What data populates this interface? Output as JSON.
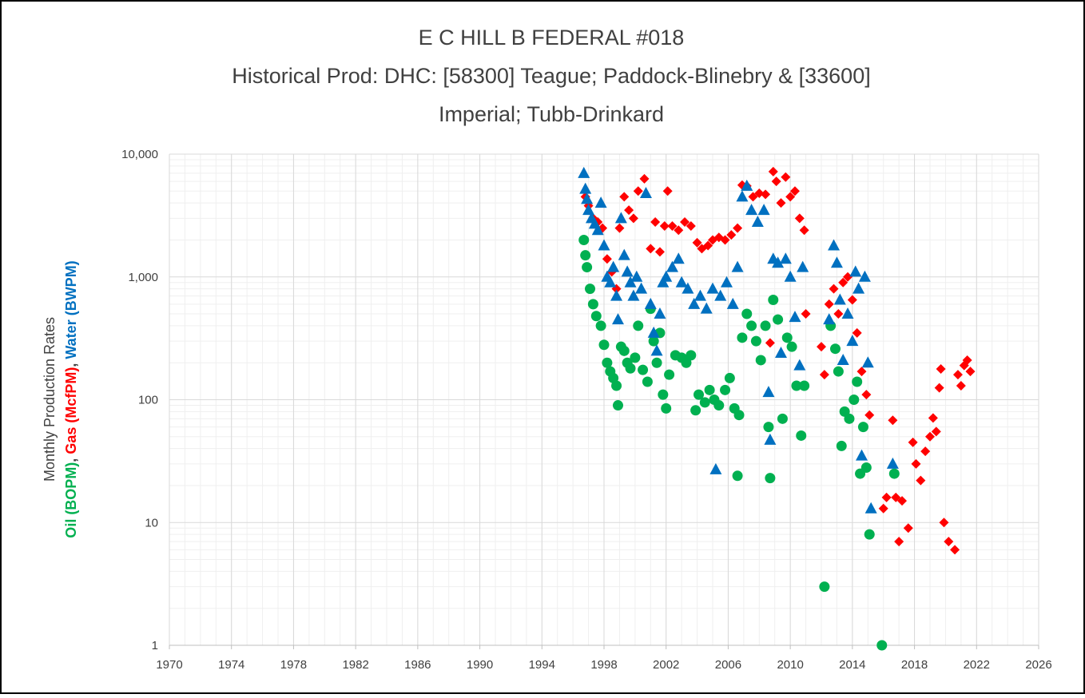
{
  "chart_data": {
    "type": "scatter",
    "title": [
      "E C HILL B FEDERAL #018",
      "Historical Prod: DHC: [58300] Teague; Paddock-Blinebry & [33600]",
      "Imperial; Tubb-Drinkard"
    ],
    "y_label": "Monthly Production Rates",
    "y_label_separator": ", ",
    "log_y": true,
    "grid": true,
    "minor_grid": true,
    "xlim": [
      1970,
      2026
    ],
    "xticks": [
      1970,
      1974,
      1978,
      1982,
      1986,
      1990,
      1994,
      1998,
      2002,
      2006,
      2010,
      2014,
      2018,
      2022,
      2026
    ],
    "ylim": [
      1,
      10000
    ],
    "yticks": [
      1,
      10,
      100,
      {
        "value": 1000,
        "label": "1,000"
      },
      {
        "value": 10000,
        "label": "10,000"
      }
    ],
    "series": [
      {
        "name": "Oil (BOPM)",
        "color": "#00b050",
        "marker": "circle",
        "x": [
          1996.7,
          1996.8,
          1996.9,
          1997.1,
          1997.3,
          1997.5,
          1997.8,
          1998.0,
          1998.2,
          1998.4,
          1998.6,
          1998.8,
          1998.9,
          1999.1,
          1999.3,
          1999.5,
          1999.7,
          2000.0,
          2000.2,
          2000.5,
          2000.8,
          2001.0,
          2001.2,
          2001.4,
          2001.6,
          2001.8,
          2002.0,
          2002.2,
          2002.6,
          2003.0,
          2003.3,
          2003.6,
          2003.9,
          2004.1,
          2004.5,
          2004.8,
          2005.1,
          2005.4,
          2005.8,
          2006.1,
          2006.4,
          2006.6,
          2006.7,
          2006.9,
          2007.2,
          2007.5,
          2007.8,
          2008.1,
          2008.4,
          2008.6,
          2008.7,
          2008.9,
          2009.2,
          2009.5,
          2009.8,
          2010.1,
          2010.4,
          2010.7,
          2010.9,
          2012.2,
          2012.6,
          2012.9,
          2013.1,
          2013.3,
          2013.5,
          2013.8,
          2014.1,
          2014.3,
          2014.5,
          2014.7,
          2014.9,
          2015.1,
          2015.9,
          2016.7
        ],
        "values": [
          2000,
          1500,
          1200,
          800,
          600,
          480,
          400,
          280,
          200,
          170,
          150,
          130,
          90,
          270,
          250,
          200,
          180,
          220,
          400,
          175,
          140,
          550,
          300,
          200,
          350,
          110,
          85,
          160,
          230,
          220,
          200,
          230,
          82,
          110,
          95,
          120,
          100,
          90,
          120,
          150,
          85,
          24,
          75,
          320,
          500,
          400,
          300,
          210,
          400,
          60,
          23,
          650,
          450,
          70,
          320,
          270,
          130,
          51,
          130,
          3,
          400,
          260,
          170,
          42,
          80,
          70,
          100,
          140,
          25,
          60,
          28,
          8,
          1,
          25
        ]
      },
      {
        "name": "Gas (McfPM)",
        "color": "#ff0000",
        "marker": "diamond",
        "x": [
          1996.8,
          1997.0,
          1997.3,
          1997.6,
          1997.9,
          1998.2,
          1998.5,
          1998.8,
          1999.0,
          1999.3,
          1999.6,
          1999.9,
          2000.2,
          2000.6,
          2001.0,
          2001.3,
          2001.6,
          2001.9,
          2002.1,
          2002.4,
          2002.8,
          2003.2,
          2003.6,
          2004.0,
          2004.3,
          2004.7,
          2005.0,
          2005.4,
          2005.8,
          2006.2,
          2006.6,
          2006.9,
          2007.2,
          2007.6,
          2008.0,
          2008.4,
          2008.7,
          2008.9,
          2009.1,
          2009.4,
          2009.7,
          2010.0,
          2010.3,
          2010.6,
          2010.9,
          2011.0,
          2012.0,
          2012.2,
          2012.5,
          2012.8,
          2013.1,
          2013.4,
          2013.7,
          2014.0,
          2014.3,
          2014.6,
          2014.9,
          2015.1,
          2016.0,
          2016.2,
          2016.6,
          2016.8,
          2017.0,
          2017.2,
          2017.6,
          2017.9,
          2018.1,
          2018.4,
          2018.7,
          2019.0,
          2019.2,
          2019.4,
          2019.6,
          2019.7,
          2019.9,
          2020.2,
          2020.6,
          2020.8,
          2021.0,
          2021.2,
          2021.4,
          2021.6
        ],
        "values": [
          4500,
          3800,
          3000,
          2800,
          2500,
          1400,
          1100,
          800,
          2500,
          4500,
          3500,
          3000,
          5000,
          6300,
          1700,
          2800,
          1600,
          2600,
          5000,
          2600,
          2400,
          2800,
          2600,
          1900,
          1700,
          1800,
          2000,
          2100,
          2000,
          2200,
          2500,
          5600,
          5500,
          4500,
          4800,
          4700,
          290,
          7200,
          6000,
          4000,
          6500,
          4500,
          5000,
          3000,
          2400,
          500,
          270,
          160,
          600,
          800,
          500,
          900,
          1000,
          650,
          350,
          170,
          110,
          75,
          13,
          16,
          68,
          16,
          7,
          15,
          9,
          45,
          30,
          22,
          38,
          50,
          71,
          55,
          125,
          178,
          10,
          7,
          6,
          160,
          130,
          190,
          210,
          170
        ]
      },
      {
        "name": "Water (BWPM)",
        "color": "#0070c0",
        "marker": "triangle",
        "x": [
          1996.7,
          1996.8,
          1996.9,
          1997.0,
          1997.2,
          1997.4,
          1997.6,
          1997.8,
          1998.0,
          1998.2,
          1998.4,
          1998.6,
          1998.8,
          1998.9,
          1999.1,
          1999.3,
          1999.5,
          1999.7,
          1999.9,
          2000.1,
          2000.4,
          2000.7,
          2001.0,
          2001.2,
          2001.4,
          2001.6,
          2001.8,
          2002.0,
          2002.4,
          2002.8,
          2003.0,
          2003.4,
          2003.8,
          2004.2,
          2004.6,
          2005.0,
          2005.2,
          2005.5,
          2005.9,
          2006.3,
          2006.6,
          2006.9,
          2007.2,
          2007.5,
          2007.9,
          2008.3,
          2008.6,
          2008.7,
          2008.9,
          2009.2,
          2009.4,
          2009.7,
          2010.0,
          2010.3,
          2010.6,
          2010.8,
          2012.5,
          2012.8,
          2013.0,
          2013.2,
          2013.4,
          2013.7,
          2014.0,
          2014.2,
          2014.4,
          2014.6,
          2014.8,
          2015.0,
          2015.2,
          2016.6
        ],
        "values": [
          7000,
          5200,
          4300,
          3500,
          3000,
          2700,
          2400,
          4000,
          1800,
          1000,
          900,
          1200,
          700,
          450,
          3000,
          1500,
          1100,
          900,
          700,
          1000,
          800,
          4800,
          600,
          350,
          250,
          500,
          900,
          1000,
          1200,
          1400,
          900,
          800,
          600,
          700,
          550,
          800,
          27,
          700,
          900,
          600,
          1200,
          4500,
          5500,
          3500,
          2800,
          3500,
          115,
          47,
          1400,
          1300,
          240,
          1400,
          1000,
          470,
          190,
          1200,
          450,
          1800,
          1300,
          650,
          210,
          500,
          300,
          1100,
          800,
          35,
          1000,
          200,
          13,
          30
        ]
      }
    ]
  }
}
